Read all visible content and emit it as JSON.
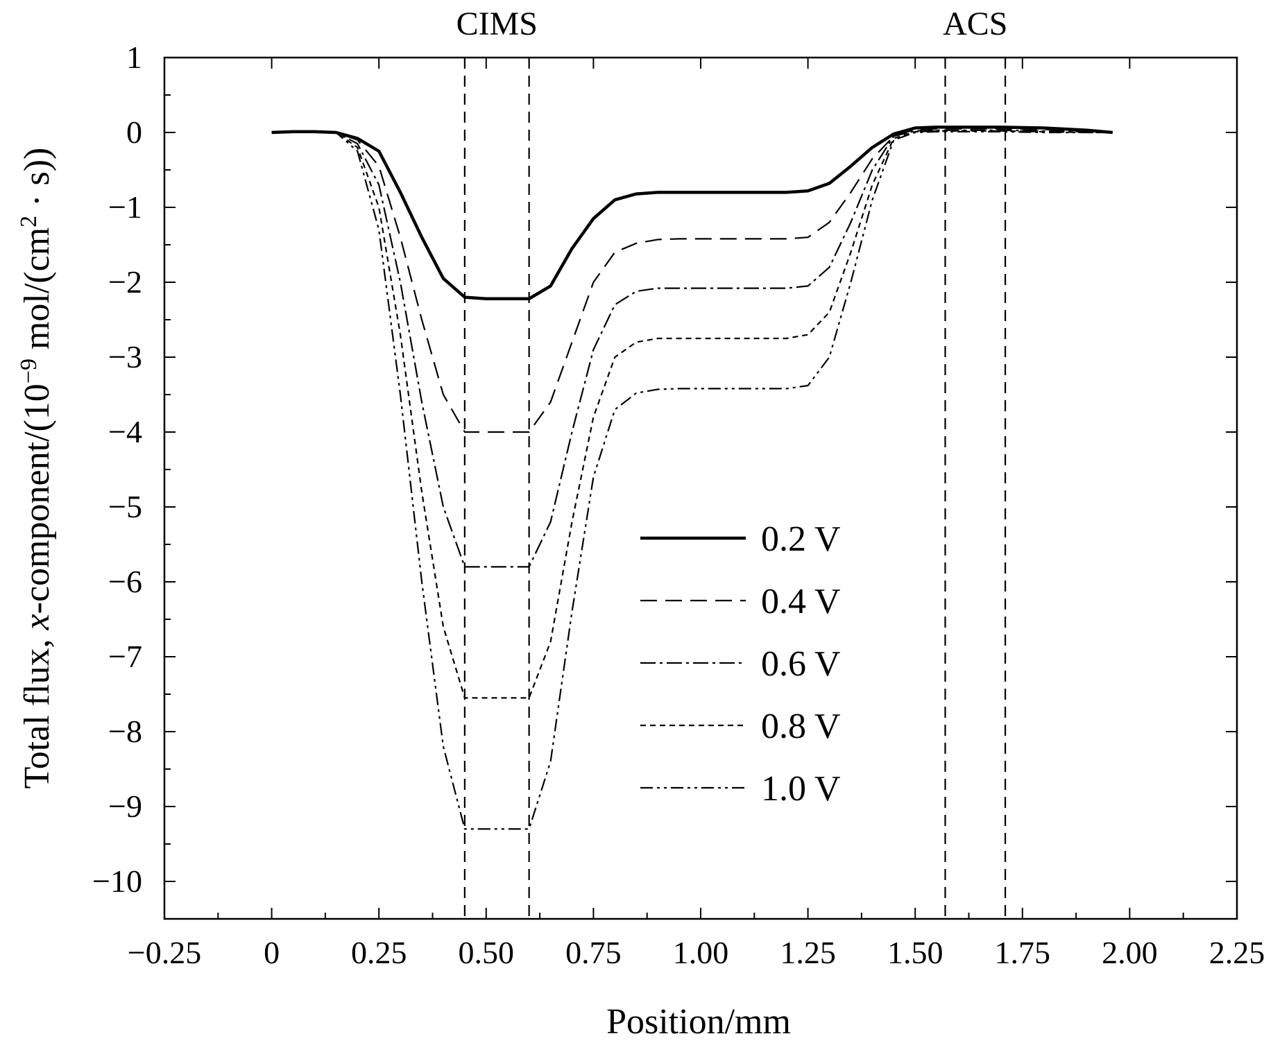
{
  "chart_data": {
    "type": "line",
    "title": "",
    "xlabel": "Position/mm",
    "ylabel_parts": {
      "prefix": "Total flux, ",
      "italic": "x",
      "mid": "-component/(10",
      "exponent": "−9",
      "mid2": " mol/(cm",
      "exponent2": "2",
      "suffix": " · s))"
    },
    "xlim": [
      -0.25,
      2.25
    ],
    "ylim": [
      -10.5,
      1
    ],
    "x_ticks": [
      -0.25,
      0,
      0.25,
      0.5,
      0.75,
      1.0,
      1.25,
      1.5,
      1.75,
      2.0,
      2.25
    ],
    "x_tick_labels": [
      "−0.25",
      "0",
      "0.25",
      "0.50",
      "0.75",
      "1.00",
      "1.25",
      "1.50",
      "1.75",
      "2.00",
      "2.25"
    ],
    "y_ticks": [
      1,
      0,
      -1,
      -2,
      -3,
      -4,
      -5,
      -6,
      -7,
      -8,
      -9,
      -10
    ],
    "y_tick_labels": [
      "1",
      "0",
      "−1",
      "−2",
      "−3",
      "−4",
      "−5",
      "−6",
      "−7",
      "−8",
      "−9",
      "−10"
    ],
    "grid": false,
    "legend_position": "center-right",
    "regions": [
      {
        "label": "CIMS",
        "x_start": 0.45,
        "x_end": 0.6
      },
      {
        "label": "ACS",
        "x_start": 1.57,
        "x_end": 1.71
      }
    ],
    "series": [
      {
        "name": "0.2 V",
        "style": "solid",
        "x": [
          0.0,
          0.05,
          0.1,
          0.15,
          0.2,
          0.25,
          0.3,
          0.35,
          0.4,
          0.45,
          0.5,
          0.55,
          0.6,
          0.65,
          0.7,
          0.75,
          0.8,
          0.85,
          0.9,
          0.95,
          1.0,
          1.05,
          1.1,
          1.15,
          1.2,
          1.25,
          1.3,
          1.35,
          1.4,
          1.45,
          1.5,
          1.55,
          1.6,
          1.7,
          1.8,
          1.9,
          1.96
        ],
        "y": [
          0.0,
          0.01,
          0.01,
          0.0,
          -0.08,
          -0.25,
          -0.8,
          -1.4,
          -1.95,
          -2.2,
          -2.22,
          -2.22,
          -2.22,
          -2.05,
          -1.55,
          -1.15,
          -0.9,
          -0.82,
          -0.8,
          -0.8,
          -0.8,
          -0.8,
          -0.8,
          -0.8,
          -0.8,
          -0.78,
          -0.68,
          -0.45,
          -0.2,
          -0.02,
          0.06,
          0.07,
          0.07,
          0.07,
          0.06,
          0.03,
          0.0
        ]
      },
      {
        "name": "0.4 V",
        "style": "dashed",
        "x": [
          0.0,
          0.05,
          0.1,
          0.15,
          0.2,
          0.25,
          0.3,
          0.35,
          0.4,
          0.45,
          0.5,
          0.55,
          0.6,
          0.65,
          0.7,
          0.75,
          0.8,
          0.85,
          0.9,
          0.95,
          1.0,
          1.05,
          1.1,
          1.15,
          1.2,
          1.25,
          1.3,
          1.35,
          1.4,
          1.45,
          1.5,
          1.55,
          1.6,
          1.7,
          1.8,
          1.9,
          1.96
        ],
        "y": [
          0.0,
          0.01,
          0.01,
          0.0,
          -0.1,
          -0.45,
          -1.4,
          -2.5,
          -3.5,
          -4.0,
          -4.0,
          -4.0,
          -4.0,
          -3.6,
          -2.8,
          -2.0,
          -1.6,
          -1.48,
          -1.43,
          -1.42,
          -1.42,
          -1.42,
          -1.42,
          -1.42,
          -1.42,
          -1.4,
          -1.2,
          -0.8,
          -0.35,
          -0.05,
          0.04,
          0.05,
          0.05,
          0.05,
          0.04,
          0.02,
          0.0
        ]
      },
      {
        "name": "0.6 V",
        "style": "dash-dot",
        "x": [
          0.0,
          0.05,
          0.1,
          0.15,
          0.2,
          0.25,
          0.3,
          0.35,
          0.4,
          0.45,
          0.5,
          0.55,
          0.6,
          0.65,
          0.7,
          0.75,
          0.8,
          0.85,
          0.9,
          0.95,
          1.0,
          1.05,
          1.1,
          1.15,
          1.2,
          1.25,
          1.3,
          1.35,
          1.4,
          1.45,
          1.5,
          1.55,
          1.6,
          1.7,
          1.8,
          1.9,
          1.96
        ],
        "y": [
          0.0,
          0.01,
          0.01,
          0.0,
          -0.15,
          -0.7,
          -2.0,
          -3.6,
          -5.0,
          -5.8,
          -5.8,
          -5.8,
          -5.8,
          -5.2,
          -4.0,
          -2.9,
          -2.3,
          -2.12,
          -2.08,
          -2.08,
          -2.08,
          -2.08,
          -2.08,
          -2.08,
          -2.08,
          -2.05,
          -1.8,
          -1.2,
          -0.5,
          -0.05,
          0.02,
          0.03,
          0.03,
          0.03,
          0.02,
          0.01,
          0.0
        ]
      },
      {
        "name": "0.8 V",
        "style": "dotted-dash",
        "x": [
          0.0,
          0.05,
          0.1,
          0.15,
          0.2,
          0.25,
          0.3,
          0.35,
          0.4,
          0.45,
          0.5,
          0.55,
          0.6,
          0.65,
          0.7,
          0.75,
          0.8,
          0.85,
          0.9,
          0.95,
          1.0,
          1.05,
          1.1,
          1.15,
          1.2,
          1.25,
          1.3,
          1.35,
          1.4,
          1.45,
          1.5,
          1.55,
          1.6,
          1.7,
          1.8,
          1.9,
          1.96
        ],
        "y": [
          0.0,
          0.01,
          0.01,
          0.0,
          -0.2,
          -1.0,
          -2.7,
          -4.8,
          -6.6,
          -7.55,
          -7.55,
          -7.55,
          -7.55,
          -6.8,
          -5.2,
          -3.8,
          -3.0,
          -2.8,
          -2.75,
          -2.75,
          -2.75,
          -2.75,
          -2.75,
          -2.75,
          -2.75,
          -2.7,
          -2.4,
          -1.6,
          -0.7,
          -0.08,
          0.01,
          0.02,
          0.02,
          0.02,
          0.01,
          0.0,
          0.0
        ]
      },
      {
        "name": "1.0 V",
        "style": "dash-dot-dot",
        "x": [
          0.0,
          0.05,
          0.1,
          0.15,
          0.2,
          0.25,
          0.3,
          0.35,
          0.4,
          0.45,
          0.5,
          0.55,
          0.6,
          0.65,
          0.7,
          0.75,
          0.8,
          0.85,
          0.9,
          0.95,
          1.0,
          1.05,
          1.1,
          1.15,
          1.2,
          1.25,
          1.3,
          1.35,
          1.4,
          1.45,
          1.5,
          1.55,
          1.6,
          1.7,
          1.8,
          1.9,
          1.96
        ],
        "y": [
          0.0,
          0.01,
          0.01,
          0.0,
          -0.25,
          -1.3,
          -3.5,
          -6.0,
          -8.2,
          -9.3,
          -9.3,
          -9.3,
          -9.3,
          -8.4,
          -6.4,
          -4.6,
          -3.7,
          -3.48,
          -3.43,
          -3.42,
          -3.42,
          -3.42,
          -3.42,
          -3.42,
          -3.42,
          -3.38,
          -3.0,
          -2.0,
          -0.9,
          -0.1,
          0.0,
          0.01,
          0.01,
          0.01,
          0.0,
          0.0,
          0.0
        ]
      }
    ]
  }
}
